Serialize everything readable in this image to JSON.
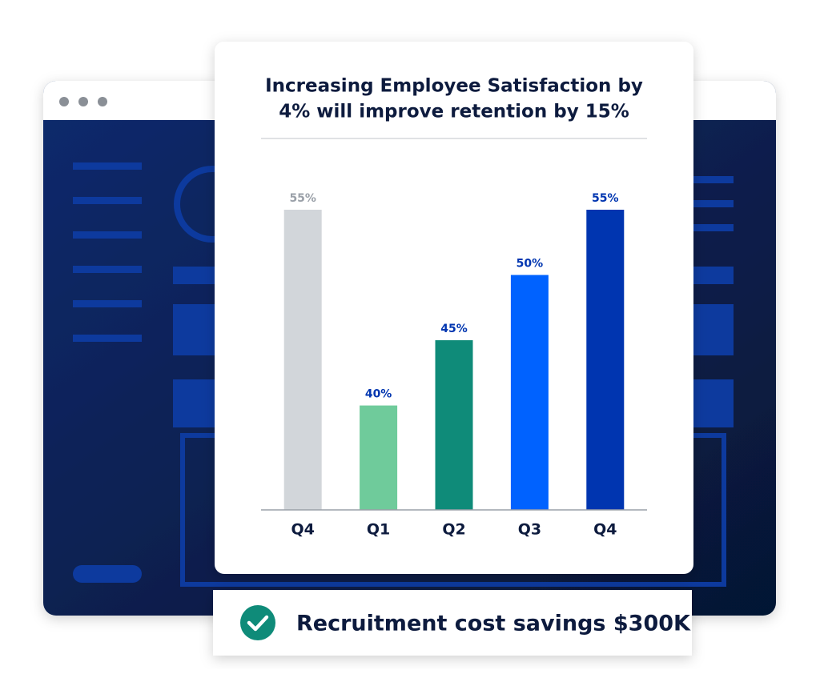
{
  "chart_data": {
    "type": "bar",
    "title": [
      "Increasing Employee Satisfaction by",
      "4% will improve retention by 15%"
    ],
    "categories": [
      "Q4",
      "Q1",
      "Q2",
      "Q3",
      "Q4"
    ],
    "values": [
      55,
      40,
      45,
      50,
      55
    ],
    "value_labels": [
      "55%",
      "40%",
      "45%",
      "50%",
      "55%"
    ],
    "colors": [
      "#d2d6da",
      "#6fcb9b",
      "#0f8b79",
      "#0062ff",
      "#0035b0"
    ],
    "value_label_colors": [
      "#9aa0a8",
      "#0035b0",
      "#0035b0",
      "#0035b0",
      "#0035b0"
    ],
    "ylim": [
      32,
      55
    ]
  },
  "banner": {
    "text": "Recruitment cost savings $300K"
  }
}
